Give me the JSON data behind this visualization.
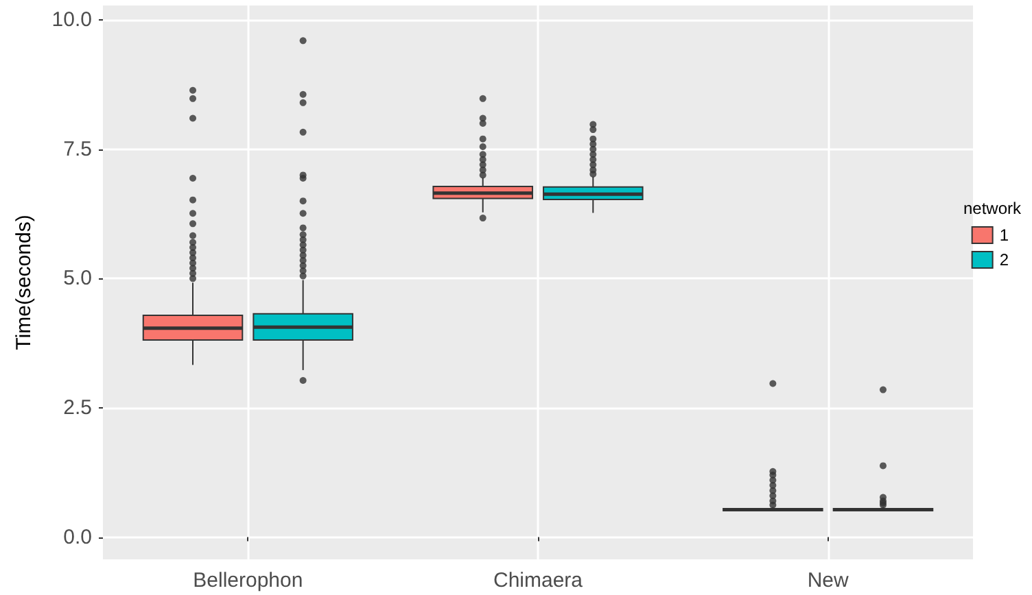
{
  "chart_data": {
    "type": "box",
    "ylabel": "Time(seconds)",
    "legend_title": "network",
    "categories": [
      "Bellerophon",
      "Chimaera",
      "New"
    ],
    "series": [
      {
        "name": "1",
        "color": "#f8766d",
        "boxes": [
          {
            "low": 3.33,
            "q1": 3.81,
            "median": 4.04,
            "q3": 4.29,
            "high": 4.92,
            "outliers": [
              5.0,
              5.1,
              5.2,
              5.3,
              5.4,
              5.5,
              5.6,
              5.7,
              5.83,
              6.06,
              6.26,
              6.52,
              6.94,
              8.1,
              8.48,
              8.64
            ]
          },
          {
            "low": 6.28,
            "q1": 6.55,
            "median": 6.65,
            "q3": 6.78,
            "high": 6.95,
            "outliers": [
              6.17,
              7.0,
              7.1,
              7.2,
              7.3,
              7.4,
              7.55,
              7.7,
              8.0,
              8.1,
              8.48
            ]
          },
          {
            "low": 0.5,
            "q1": 0.51,
            "median": 0.53,
            "q3": 0.55,
            "high": 0.58,
            "outliers": [
              0.62,
              0.7,
              0.8,
              0.9,
              1.0,
              1.1,
              1.2,
              1.27,
              2.97
            ]
          }
        ]
      },
      {
        "name": "2",
        "color": "#00bfc4",
        "boxes": [
          {
            "low": 3.23,
            "q1": 3.81,
            "median": 4.06,
            "q3": 4.32,
            "high": 4.97,
            "outliers": [
              3.03,
              5.05,
              5.15,
              5.25,
              5.35,
              5.45,
              5.55,
              5.65,
              5.75,
              5.85,
              5.98,
              6.26,
              6.5,
              6.94,
              7.0,
              7.83,
              8.4,
              8.56,
              9.6
            ]
          },
          {
            "low": 6.27,
            "q1": 6.53,
            "median": 6.63,
            "q3": 6.77,
            "high": 6.97,
            "outliers": [
              7.02,
              7.1,
              7.2,
              7.3,
              7.4,
              7.5,
              7.6,
              7.7,
              7.88,
              7.98
            ]
          },
          {
            "low": 0.5,
            "q1": 0.51,
            "median": 0.53,
            "q3": 0.55,
            "high": 0.58,
            "outliers": [
              0.62,
              0.66,
              0.7,
              0.77,
              1.38,
              2.85
            ]
          }
        ]
      }
    ],
    "ylim": [
      -0.43,
      10.28
    ],
    "yticks": [
      {
        "value": 0,
        "label": "0.0"
      },
      2.5,
      {
        "value": 5,
        "label": "5.0"
      },
      7.5,
      {
        "value": 10,
        "label": "10.0"
      }
    ],
    "grid": true,
    "legend": "right"
  }
}
